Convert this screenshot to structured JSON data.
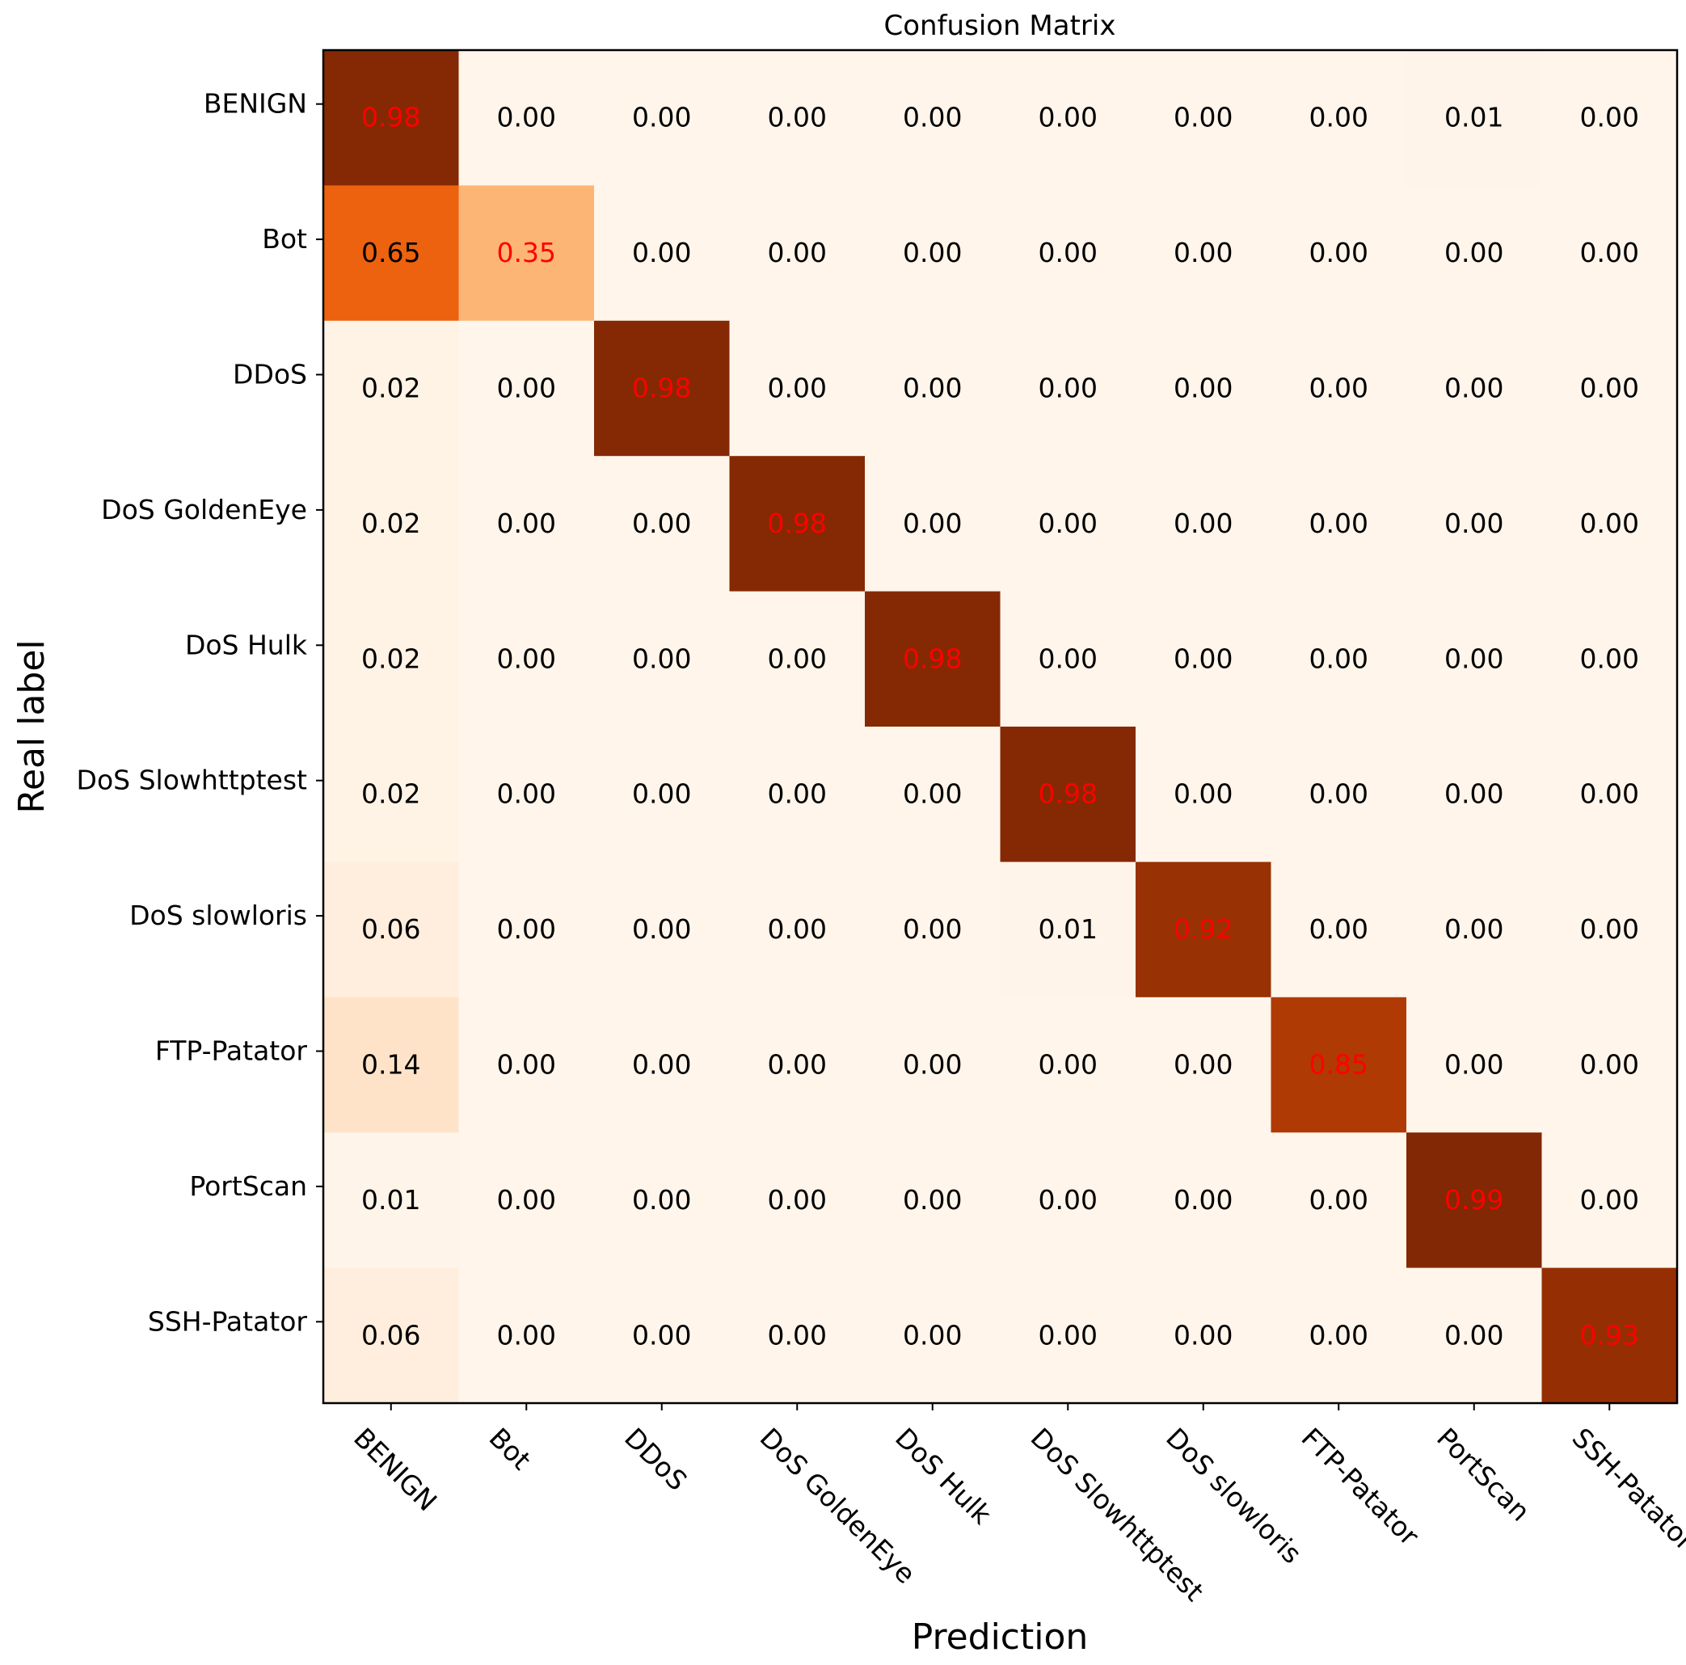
{
  "chart_data": {
    "type": "heatmap",
    "title": "Confusion Matrix",
    "xlabel": "Prediction",
    "ylabel": "Real label",
    "x_categories": [
      "BENIGN",
      "Bot",
      "DDoS",
      "DoS GoldenEye",
      "DoS Hulk",
      "DoS Slowhttptest",
      "DoS slowloris",
      "FTP-Patator",
      "PortScan",
      "SSH-Patator"
    ],
    "y_categories": [
      "BENIGN",
      "Bot",
      "DDoS",
      "DoS GoldenEye",
      "DoS Hulk",
      "DoS Slowhttptest",
      "DoS slowloris",
      "FTP-Patator",
      "PortScan",
      "SSH-Patator"
    ],
    "values": [
      [
        0.98,
        0.0,
        0.0,
        0.0,
        0.0,
        0.0,
        0.0,
        0.0,
        0.01,
        0.0
      ],
      [
        0.65,
        0.35,
        0.0,
        0.0,
        0.0,
        0.0,
        0.0,
        0.0,
        0.0,
        0.0
      ],
      [
        0.02,
        0.0,
        0.98,
        0.0,
        0.0,
        0.0,
        0.0,
        0.0,
        0.0,
        0.0
      ],
      [
        0.02,
        0.0,
        0.0,
        0.98,
        0.0,
        0.0,
        0.0,
        0.0,
        0.0,
        0.0
      ],
      [
        0.02,
        0.0,
        0.0,
        0.0,
        0.98,
        0.0,
        0.0,
        0.0,
        0.0,
        0.0
      ],
      [
        0.02,
        0.0,
        0.0,
        0.0,
        0.0,
        0.98,
        0.0,
        0.0,
        0.0,
        0.0
      ],
      [
        0.06,
        0.0,
        0.0,
        0.0,
        0.0,
        0.01,
        0.92,
        0.0,
        0.0,
        0.0
      ],
      [
        0.14,
        0.0,
        0.0,
        0.0,
        0.0,
        0.0,
        0.0,
        0.85,
        0.0,
        0.0
      ],
      [
        0.01,
        0.0,
        0.0,
        0.0,
        0.0,
        0.0,
        0.0,
        0.0,
        0.99,
        0.0
      ],
      [
        0.06,
        0.0,
        0.0,
        0.0,
        0.0,
        0.0,
        0.0,
        0.0,
        0.0,
        0.93
      ]
    ],
    "value_range": [
      0,
      1
    ],
    "colormap": "Oranges",
    "diagonal_label_color": "#ff0000",
    "off_diagonal_label_color": "#000000"
  }
}
